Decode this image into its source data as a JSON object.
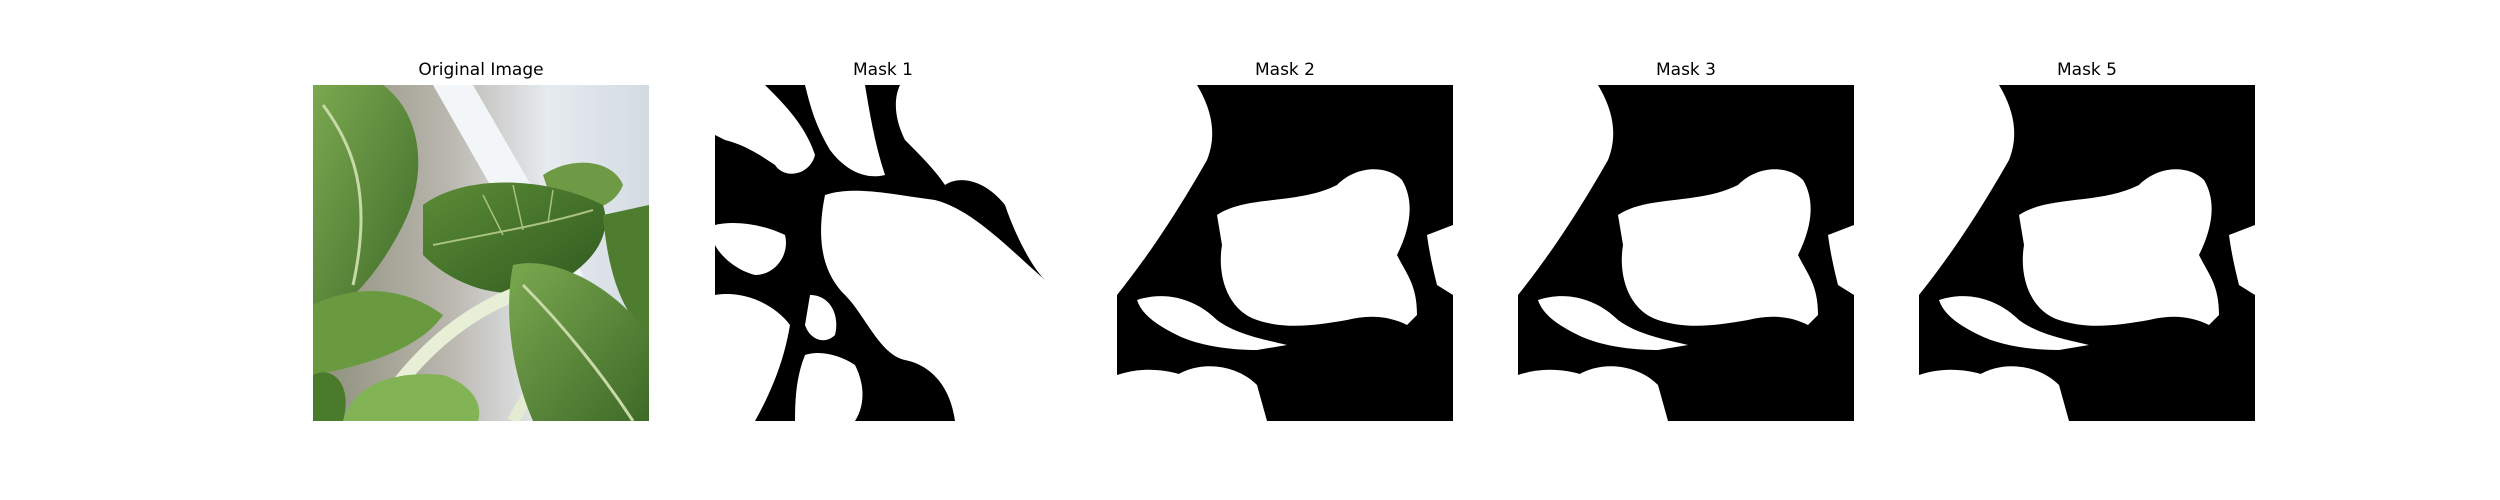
{
  "panels": [
    {
      "title": "Original Image"
    },
    {
      "title": "Mask 1"
    },
    {
      "title": "Mask 2"
    },
    {
      "title": "Mask 3"
    },
    {
      "title": "Mask 5"
    }
  ],
  "colors": {
    "mask_background": "#000000",
    "mask_foreground": "#ffffff",
    "leaf_green": "#5f8f3a",
    "leaf_dark": "#3f6b2a",
    "window_light": "#dfe5ea"
  }
}
